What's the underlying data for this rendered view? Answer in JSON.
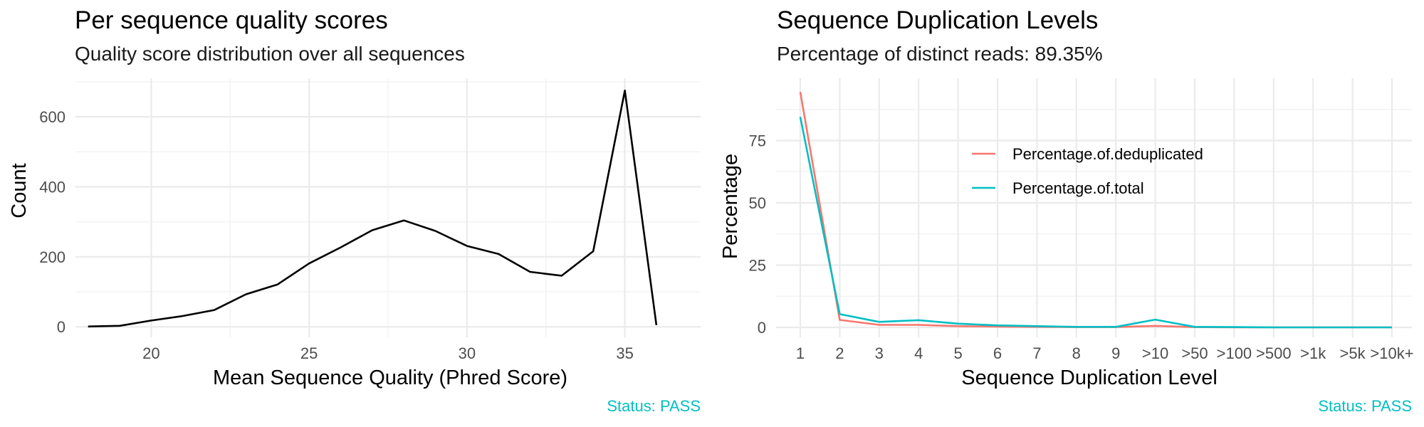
{
  "chart_data": [
    {
      "type": "line",
      "title": "Per sequence quality scores",
      "subtitle": "Quality score distribution over all sequences",
      "xlabel": "Mean Sequence Quality (Phred Score)",
      "ylabel": "Count",
      "xlim": [
        17.6,
        37.4
      ],
      "ylim": [
        -30,
        710
      ],
      "x_ticks": [
        20,
        25,
        30,
        35
      ],
      "y_ticks": [
        0,
        200,
        400,
        600
      ],
      "grid": true,
      "series": [
        {
          "color": "#000000",
          "x": [
            18,
            19,
            20,
            21,
            22,
            23,
            24,
            25,
            26,
            27,
            28,
            29,
            30,
            31,
            32,
            33,
            34,
            35,
            36
          ],
          "y": [
            1,
            3,
            18,
            31,
            48,
            93,
            121,
            181,
            227,
            276,
            304,
            274,
            231,
            208,
            157,
            146,
            216,
            675,
            5
          ]
        }
      ],
      "status": "Status: PASS"
    },
    {
      "type": "line",
      "title": "Sequence Duplication Levels",
      "subtitle": "Percentage of distinct reads: 89.35%",
      "xlabel": "Sequence Duplication Level",
      "ylabel": "Percentage",
      "ylim": [
        -4,
        100
      ],
      "y_ticks": [
        0,
        25,
        50,
        75
      ],
      "categories": [
        "1",
        "2",
        "3",
        "4",
        "5",
        "6",
        "7",
        "8",
        "9",
        ">10",
        ">50",
        ">100",
        ">500",
        ">1k",
        ">5k",
        ">10k+"
      ],
      "grid": true,
      "legend_position": "top-center",
      "series": [
        {
          "name": "Percentage.of.deduplicated",
          "color": "#F8766D",
          "values": [
            94.5,
            3.0,
            1.0,
            1.0,
            0.5,
            0.3,
            0.2,
            0.1,
            0.1,
            0.6,
            0.1,
            0.0,
            0.0,
            0.0,
            0.0,
            0.0
          ]
        },
        {
          "name": "Percentage.of.total",
          "color": "#00BFC4",
          "values": [
            84.5,
            5.3,
            2.2,
            2.9,
            1.5,
            0.8,
            0.5,
            0.2,
            0.2,
            3.1,
            0.2,
            0.1,
            0.0,
            0.0,
            0.0,
            0.0
          ]
        }
      ],
      "status": "Status: PASS",
      "status_color": "#00BFC4"
    }
  ]
}
